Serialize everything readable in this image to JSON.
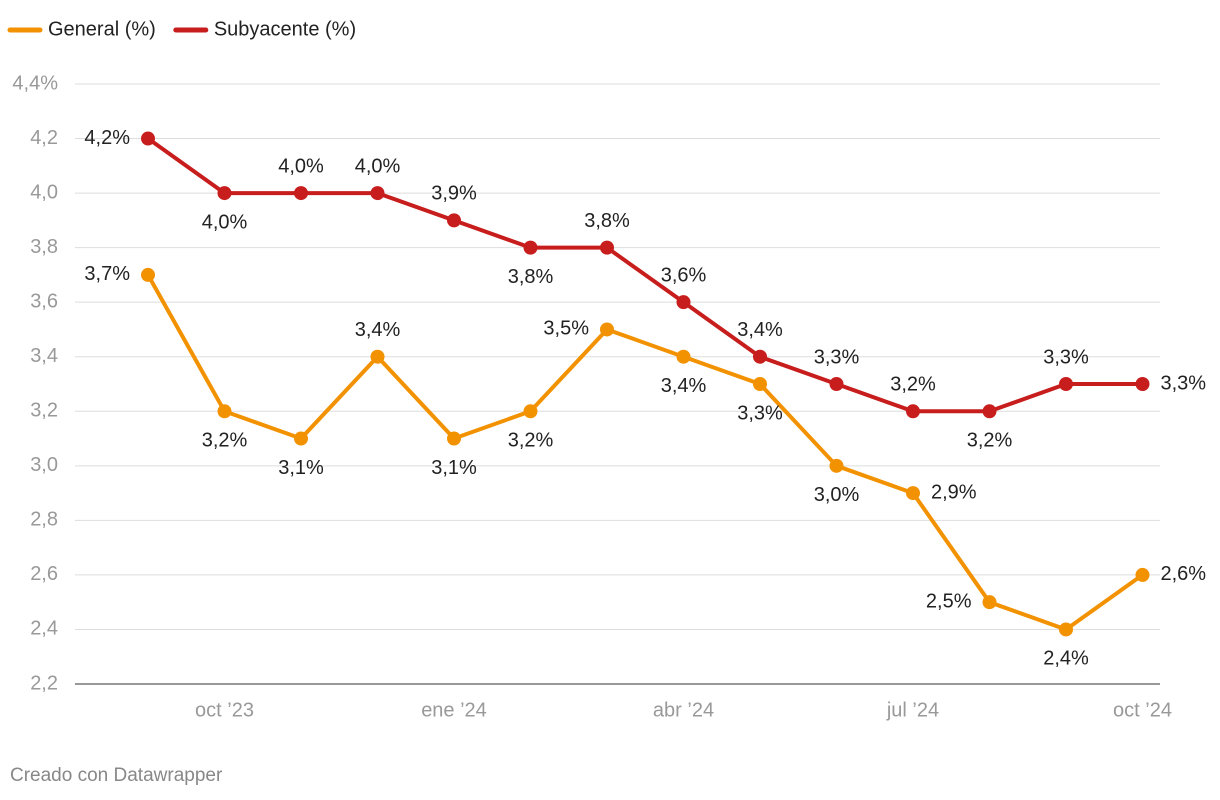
{
  "chart_data": {
    "type": "line",
    "categories": [
      null,
      "oct ’23",
      null,
      null,
      "ene ’24",
      null,
      null,
      "abr ’24",
      null,
      null,
      "jul ’24",
      null,
      null,
      "oct ’24"
    ],
    "series": [
      {
        "name": "General (%)",
        "color": "#f39200",
        "values": [
          3.7,
          3.2,
          3.1,
          3.4,
          3.1,
          3.2,
          3.5,
          3.4,
          3.3,
          3.0,
          2.9,
          2.5,
          2.4,
          2.6
        ],
        "value_labels": [
          "3,7%",
          "3,2%",
          "3,1%",
          "3,4%",
          "3,1%",
          "3,2%",
          "3,5%",
          "3,4%",
          "3,3%",
          "3,0%",
          "2,9%",
          "2,5%",
          "2,4%",
          "2,6%"
        ]
      },
      {
        "name": "Subyacente (%)",
        "color": "#c71e1d",
        "values": [
          4.2,
          4.0,
          4.0,
          4.0,
          3.9,
          3.8,
          3.8,
          3.6,
          3.4,
          3.3,
          3.2,
          3.2,
          3.3,
          3.3
        ],
        "value_labels": [
          "4,2%",
          "4,0%",
          "4,0%",
          "4,0%",
          "3,9%",
          "3,8%",
          "3,8%",
          "3,6%",
          "3,4%",
          "3,3%",
          "3,2%",
          "3,2%",
          "3,3%",
          "3,3%"
        ]
      }
    ],
    "ylim": [
      2.2,
      4.4
    ],
    "yticks": [
      {
        "value": 2.2,
        "label": "2,2"
      },
      {
        "value": 2.4,
        "label": "2,4"
      },
      {
        "value": 2.6,
        "label": "2,6"
      },
      {
        "value": 2.8,
        "label": "2,8"
      },
      {
        "value": 3.0,
        "label": "3,0"
      },
      {
        "value": 3.2,
        "label": "3,2"
      },
      {
        "value": 3.4,
        "label": "3,4"
      },
      {
        "value": 3.6,
        "label": "3,6"
      },
      {
        "value": 3.8,
        "label": "3,8"
      },
      {
        "value": 4.0,
        "label": "4,0"
      },
      {
        "value": 4.2,
        "label": "4,2"
      },
      {
        "value": 4.4,
        "label": "4,4%"
      }
    ],
    "grid": true,
    "legend": "top-left",
    "footer": "Creado con Datawrapper"
  }
}
